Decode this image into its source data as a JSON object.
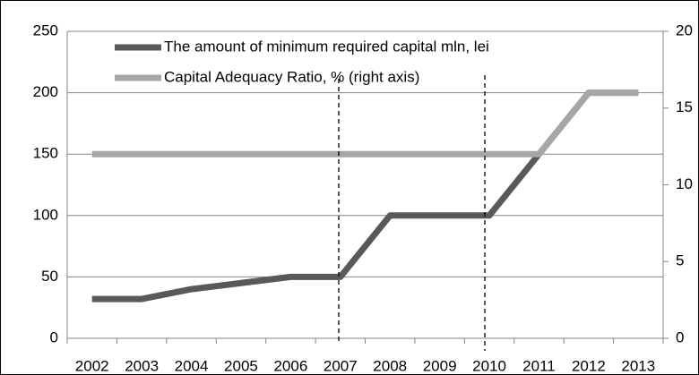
{
  "chart_data": {
    "type": "line",
    "categories": [
      "2002",
      "2003",
      "2004",
      "2005",
      "2006",
      "2007",
      "2008",
      "2009",
      "2010",
      "2011",
      "2012",
      "2013"
    ],
    "series": [
      {
        "name": "The amount of minimum required capital mln, lei",
        "color": "#595959",
        "values": [
          32,
          32,
          40,
          45,
          50,
          50,
          100,
          100,
          100,
          150,
          200,
          200
        ]
      },
      {
        "name": "Capital Adequacy Ratio, % (right axis)",
        "color": "#a6a6a6",
        "axis": "y2",
        "values": [
          12,
          12,
          12,
          12,
          12,
          12,
          12,
          12,
          12,
          12,
          16,
          16
        ]
      }
    ],
    "ylim": [
      0,
      250
    ],
    "yticks": [
      0,
      50,
      100,
      150,
      200,
      250
    ],
    "y2lim": [
      0,
      20
    ],
    "y2ticks": [
      0,
      5,
      10,
      15,
      20
    ],
    "grid": true,
    "legend": "top"
  }
}
